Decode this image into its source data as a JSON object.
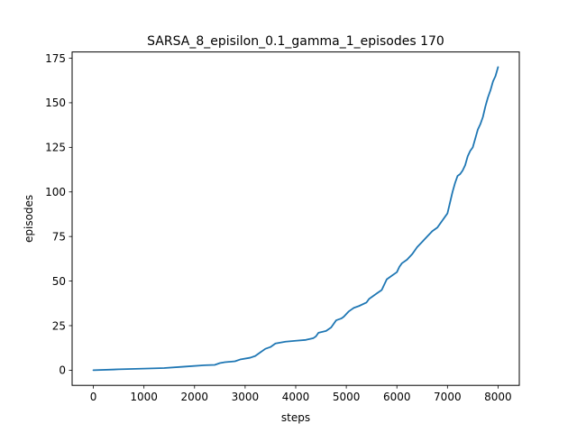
{
  "chart_data": {
    "type": "line",
    "title": "SARSA_8_episilon_0.1_gamma_1_episodes 170",
    "xlabel": "steps",
    "ylabel": "episodes",
    "xlim": [
      -420,
      8420
    ],
    "ylim": [
      -8.5,
      178.5
    ],
    "xticks": [
      0,
      1000,
      2000,
      3000,
      4000,
      5000,
      6000,
      7000,
      8000
    ],
    "yticks": [
      0,
      25,
      50,
      75,
      100,
      125,
      150,
      175
    ],
    "grid": false,
    "legend": "none",
    "series": [
      {
        "color": "#1f77b4",
        "x": [
          0,
          500,
          1000,
          1400,
          1800,
          2200,
          2400,
          2500,
          2600,
          2800,
          2900,
          3100,
          3200,
          3300,
          3400,
          3500,
          3600,
          3700,
          3800,
          4000,
          4200,
          4350,
          4400,
          4450,
          4600,
          4700,
          4800,
          4900,
          4950,
          5050,
          5100,
          5150,
          5250,
          5400,
          5450,
          5500,
          5600,
          5700,
          5800,
          5900,
          6000,
          6050,
          6100,
          6200,
          6300,
          6350,
          6400,
          6500,
          6600,
          6700,
          6800,
          6850,
          6900,
          6950,
          7000,
          7050,
          7100,
          7150,
          7200,
          7250,
          7300,
          7350,
          7400,
          7450,
          7500,
          7550,
          7600,
          7650,
          7700,
          7750,
          7800,
          7850,
          7900,
          7950,
          8000
        ],
        "y": [
          0,
          0.5,
          0.9,
          1.2,
          2,
          2.8,
          3,
          4,
          4.5,
          5,
          6,
          7,
          8,
          10,
          12,
          13,
          15,
          15.5,
          16,
          16.5,
          17,
          18,
          19,
          21,
          22,
          24,
          28,
          29,
          30,
          33,
          34,
          35,
          36,
          38,
          40,
          41,
          43,
          45,
          51,
          53,
          55,
          58,
          60,
          62,
          65,
          67,
          69,
          72,
          75,
          78,
          80,
          82,
          84,
          86,
          88,
          94,
          100,
          105,
          109,
          110,
          112,
          115,
          120,
          123,
          125,
          130,
          135,
          138,
          142,
          148,
          153,
          157,
          162,
          165,
          170
        ]
      }
    ]
  }
}
